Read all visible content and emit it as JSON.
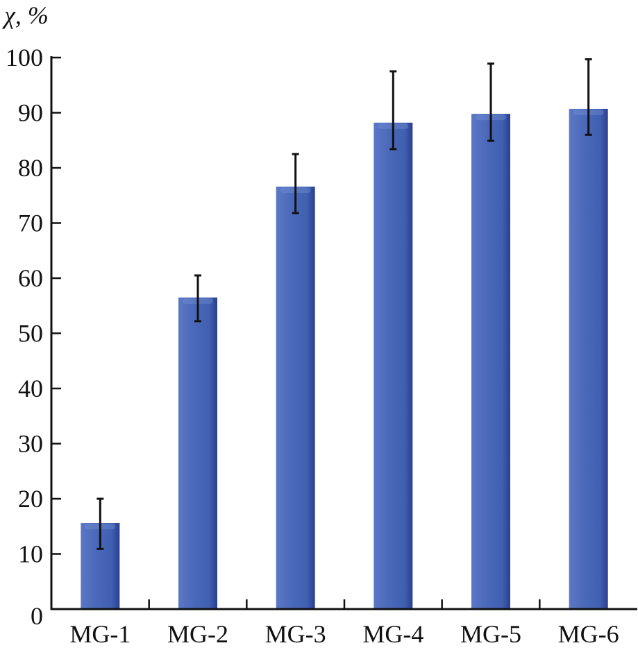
{
  "chart_data": {
    "type": "bar",
    "title": "",
    "ylabel": "χ, %",
    "xlabel": "",
    "ylim": [
      0,
      100
    ],
    "yticks": [
      0,
      10,
      20,
      30,
      40,
      50,
      60,
      70,
      80,
      90,
      100
    ],
    "categories": [
      "MG-1",
      "MG-2",
      "MG-3",
      "MG-4",
      "MG-5",
      "MG-6"
    ],
    "values": [
      15.6,
      56.5,
      76.6,
      88.2,
      89.8,
      90.7
    ],
    "error_upper": [
      4.4,
      4.0,
      5.9,
      9.3,
      9.1,
      9.0
    ],
    "error_lower": [
      4.7,
      4.3,
      4.8,
      4.8,
      4.9,
      4.7
    ],
    "grid": false,
    "colors": {
      "bar": "#3f5fb0",
      "bar_dark": "#2a3f8f",
      "error_bar": "#111111",
      "axis": "#111111"
    }
  }
}
